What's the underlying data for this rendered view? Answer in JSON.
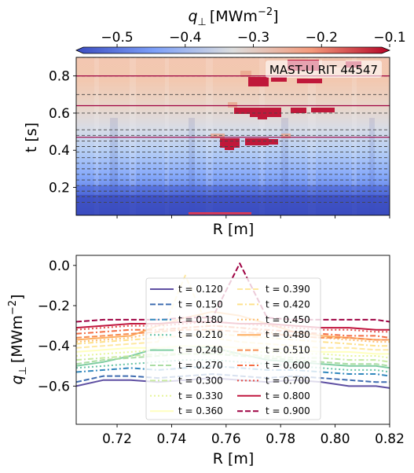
{
  "colorbar": {
    "label": "q⊥ [MWm⁻²]",
    "label_main": "q",
    "label_sub": "⊥",
    "label_unit": "[MWm",
    "label_exp": "−2",
    "label_close": "]",
    "range": [
      -0.56,
      -0.1
    ],
    "ticks": [
      "−0.5",
      "−0.4",
      "−0.3",
      "−0.2",
      "−0.1"
    ],
    "tick_values": [
      -0.5,
      -0.4,
      -0.3,
      -0.2,
      -0.1
    ],
    "colormap": "coolwarm"
  },
  "chart_data": [
    {
      "type": "heatmap",
      "title": "MAST-U RIT 44547",
      "xlabel": "R [m]",
      "ylabel": "t [s]",
      "xlim": [
        0.705,
        0.82
      ],
      "ylim": [
        0.05,
        0.9
      ],
      "yticks": [
        "0.2",
        "0.4",
        "0.6",
        "0.8"
      ],
      "ytick_values": [
        0.2,
        0.4,
        0.6,
        0.8
      ],
      "dashed_time_lines": [
        0.12,
        0.15,
        0.18,
        0.21,
        0.24,
        0.27,
        0.3,
        0.33,
        0.36,
        0.39,
        0.42,
        0.45,
        0.48,
        0.51,
        0.6,
        0.7,
        0.8,
        0.9
      ],
      "solid_time_lines": [
        0.47,
        0.64,
        0.8
      ]
    },
    {
      "type": "line",
      "xlabel": "R [m]",
      "ylabel": "q⊥ [MWm⁻²]",
      "ylabel_main": "q",
      "ylabel_sub": "⊥",
      "ylabel_unit": "[MWm",
      "ylabel_exp": "−2",
      "ylabel_close": "]",
      "xlim": [
        0.705,
        0.82
      ],
      "ylim": [
        -0.79,
        0.05
      ],
      "xticks": [
        "0.72",
        "0.74",
        "0.76",
        "0.78",
        "0.80",
        "0.82"
      ],
      "xtick_values": [
        0.72,
        0.74,
        0.76,
        0.78,
        0.8,
        0.82
      ],
      "yticks": [
        "0.0",
        "−0.2",
        "−0.4",
        "−0.6"
      ],
      "ytick_values": [
        0.0,
        -0.2,
        -0.4,
        -0.6
      ],
      "legend_placement": "center",
      "x": [
        0.705,
        0.715,
        0.725,
        0.735,
        0.745,
        0.755,
        0.765,
        0.775,
        0.785,
        0.795,
        0.805,
        0.815,
        0.82
      ],
      "series": [
        {
          "name": "t = 0.120",
          "color": "#5e4fa2",
          "dash": "solid",
          "values": [
            -0.6,
            -0.57,
            -0.57,
            -0.58,
            -0.57,
            -0.56,
            -0.57,
            -0.58,
            -0.57,
            -0.58,
            -0.6,
            -0.6,
            -0.61
          ]
        },
        {
          "name": "t = 0.150",
          "color": "#3f6cb0",
          "dash": "dashed",
          "values": [
            -0.58,
            -0.55,
            -0.55,
            -0.56,
            -0.55,
            -0.54,
            -0.55,
            -0.56,
            -0.55,
            -0.56,
            -0.57,
            -0.58,
            -0.58
          ]
        },
        {
          "name": "t = 0.180",
          "color": "#3288bd",
          "dash": "dashdot",
          "values": [
            -0.53,
            -0.52,
            -0.51,
            -0.52,
            -0.51,
            -0.5,
            -0.51,
            -0.52,
            -0.52,
            -0.53,
            -0.54,
            -0.54,
            -0.55
          ]
        },
        {
          "name": "t = 0.210",
          "color": "#66c2a5",
          "dash": "dotted",
          "values": [
            -0.51,
            -0.5,
            -0.49,
            -0.48,
            -0.47,
            -0.47,
            -0.48,
            -0.49,
            -0.5,
            -0.51,
            -0.52,
            -0.52,
            -0.53
          ]
        },
        {
          "name": "t = 0.240",
          "color": "#7fcda2",
          "dash": "solid",
          "values": [
            -0.5,
            -0.48,
            -0.45,
            -0.41,
            -0.4,
            -0.41,
            -0.44,
            -0.47,
            -0.48,
            -0.49,
            -0.5,
            -0.5,
            -0.51
          ]
        },
        {
          "name": "t = 0.270",
          "color": "#abdda4",
          "dash": "dashed",
          "values": [
            -0.49,
            -0.47,
            -0.46,
            -0.45,
            -0.44,
            -0.44,
            -0.45,
            -0.46,
            -0.47,
            -0.48,
            -0.49,
            -0.49,
            -0.5
          ]
        },
        {
          "name": "t = 0.300",
          "color": "#c8e9a0",
          "dash": "dashdot",
          "values": [
            -0.47,
            -0.46,
            -0.45,
            -0.44,
            -0.44,
            -0.44,
            -0.44,
            -0.45,
            -0.46,
            -0.46,
            -0.47,
            -0.47,
            -0.48
          ]
        },
        {
          "name": "t = 0.330",
          "color": "#e6f598",
          "dash": "dotted",
          "values": [
            -0.45,
            -0.44,
            -0.43,
            -0.42,
            -0.42,
            -0.42,
            -0.43,
            -0.43,
            -0.44,
            -0.44,
            -0.45,
            -0.45,
            -0.46
          ]
        },
        {
          "name": "t = 0.360",
          "color": "#ffffbf",
          "dash": "solid",
          "values": [
            -0.43,
            -0.42,
            -0.41,
            -0.41,
            -0.4,
            -0.4,
            -0.41,
            -0.41,
            -0.42,
            -0.43,
            -0.43,
            -0.44,
            -0.44
          ]
        },
        {
          "name": "t = 0.390",
          "color": "#fee8a0",
          "dash": "dashed",
          "values": [
            -0.41,
            -0.4,
            -0.39,
            -0.38,
            -0.05,
            -0.36,
            -0.38,
            -0.39,
            -0.4,
            -0.41,
            -0.41,
            -0.42,
            -0.42
          ]
        },
        {
          "name": "t = 0.420",
          "color": "#fee08b",
          "dash": "dashdot",
          "values": [
            -0.39,
            -0.38,
            -0.37,
            -0.36,
            -0.35,
            -0.34,
            -0.35,
            -0.36,
            -0.37,
            -0.38,
            -0.39,
            -0.4,
            -0.4
          ]
        },
        {
          "name": "t = 0.450",
          "color": "#fdbf6f",
          "dash": "dotted",
          "values": [
            -0.38,
            -0.37,
            -0.36,
            -0.33,
            -0.31,
            -0.3,
            -0.31,
            -0.33,
            -0.35,
            -0.36,
            -0.37,
            -0.38,
            -0.38
          ]
        },
        {
          "name": "t = 0.480",
          "color": "#fdae61",
          "dash": "solid",
          "values": [
            -0.37,
            -0.36,
            -0.35,
            -0.3,
            -0.26,
            -0.23,
            -0.25,
            -0.29,
            -0.33,
            -0.35,
            -0.36,
            -0.37,
            -0.37
          ]
        },
        {
          "name": "t = 0.510",
          "color": "#f88e52",
          "dash": "dashed",
          "values": [
            -0.36,
            -0.35,
            -0.34,
            -0.33,
            -0.32,
            -0.32,
            -0.33,
            -0.34,
            -0.35,
            -0.36,
            -0.36,
            -0.37,
            -0.37
          ]
        },
        {
          "name": "t = 0.600",
          "color": "#f46d43",
          "dash": "dashdot",
          "values": [
            -0.34,
            -0.33,
            -0.32,
            -0.32,
            -0.31,
            -0.3,
            -0.31,
            -0.32,
            -0.33,
            -0.34,
            -0.35,
            -0.35,
            -0.36
          ]
        },
        {
          "name": "t = 0.700",
          "color": "#e4514a",
          "dash": "dotted",
          "values": [
            -0.32,
            -0.31,
            -0.3,
            -0.3,
            -0.29,
            -0.28,
            -0.29,
            -0.3,
            -0.31,
            -0.32,
            -0.32,
            -0.33,
            -0.33
          ]
        },
        {
          "name": "t = 0.800",
          "color": "#c0163f",
          "dash": "solid",
          "values": [
            -0.31,
            -0.3,
            -0.29,
            -0.29,
            -0.28,
            -0.28,
            -0.29,
            -0.29,
            -0.3,
            -0.31,
            -0.31,
            -0.32,
            -0.32
          ]
        },
        {
          "name": "t = 0.900",
          "color": "#9e0142",
          "dash": "dashed",
          "values": [
            -0.28,
            -0.27,
            -0.27,
            -0.27,
            -0.26,
            -0.26,
            0.01,
            -0.26,
            -0.27,
            -0.27,
            -0.27,
            -0.27,
            -0.28
          ]
        }
      ]
    }
  ]
}
